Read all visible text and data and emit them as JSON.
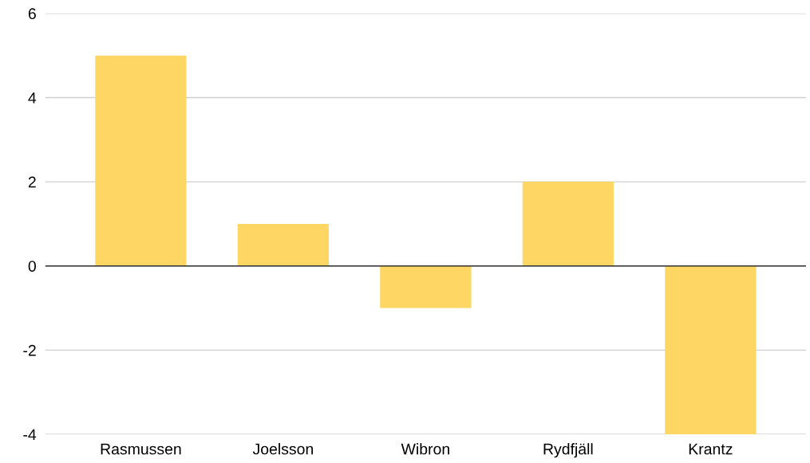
{
  "chart_data": {
    "type": "bar",
    "categories": [
      "Rasmussen",
      "Joelsson",
      "Wibron",
      "Rydfjäll",
      "Krantz"
    ],
    "values": [
      5,
      1,
      -1,
      2,
      -4
    ],
    "color": "#fdd663",
    "ylim": [
      -4,
      6
    ],
    "yticks": [
      -4,
      -2,
      0,
      2,
      4,
      6
    ],
    "grid": "y",
    "legend": false
  }
}
